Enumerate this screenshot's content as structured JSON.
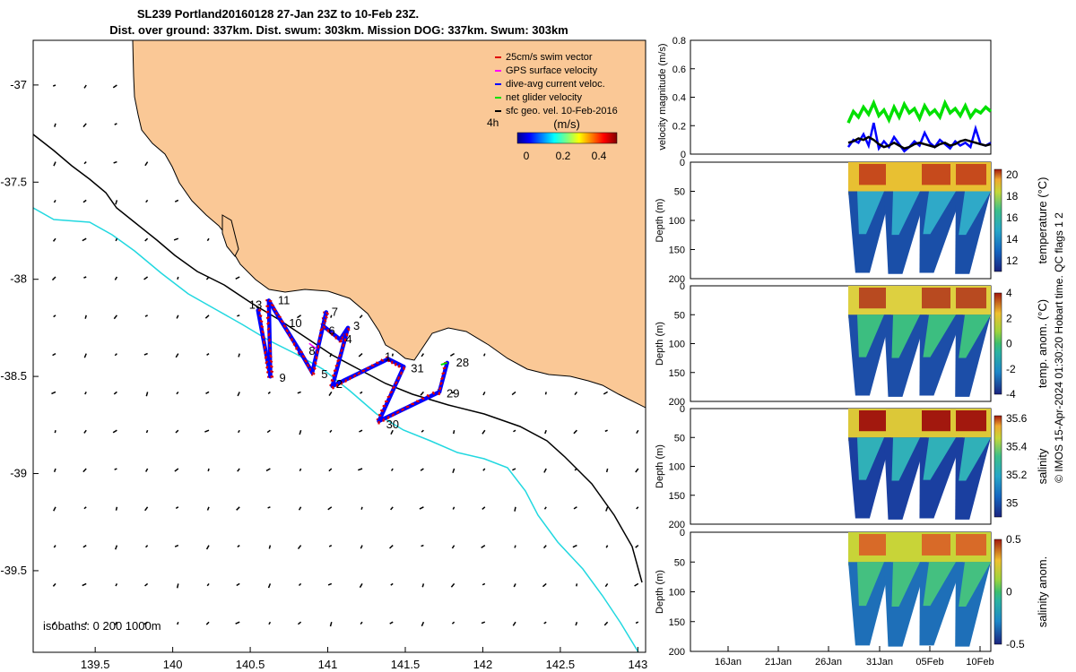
{
  "title_line1": "SL239 Portland20160128 27-Jan 23Z to 10-Feb 23Z.",
  "title_line2": "Dist. over ground: 337km. Dist. swum: 303km. Mission DOG: 337km. Swum: 303km",
  "side_note": "© IMOS 15-Apr-2024 01:30:20 Hobart time. QC flags 1  2",
  "colors": {
    "land": "#FAC896",
    "isobath_200": "#000000",
    "isobath_1000": "#22D8E0",
    "swim": "#E00000",
    "gps": "#FF00FF",
    "dive_avg": "#0000FF",
    "net": "#00E000",
    "geo": "#000000"
  },
  "chart_data": [
    {
      "type": "scatter",
      "name_panel": "map",
      "x_ticks": [
        "139.5",
        "140",
        "140.5",
        "141",
        "141.5",
        "142",
        "142.5",
        "143"
      ],
      "y_ticks": [
        "-37",
        "-37.5",
        "-38",
        "-38.5",
        "-39",
        "-39.5"
      ],
      "xlim": [
        139.1,
        143.05
      ],
      "ylim": [
        -39.92,
        -36.77
      ],
      "legend": [
        "25cm/s swim vector",
        "GPS surface velocity",
        "dive-avg current veloc.",
        "net glider velocity",
        "sfc geo. vel. 10-Feb-2016"
      ],
      "legend_placement": "top-right",
      "duration_label": "4h",
      "colorbar": {
        "label": "(m/s)",
        "ticks": [
          "0",
          "0.2",
          "0.4"
        ],
        "range": [
          0,
          0.5
        ]
      },
      "isobath_note": "isobaths: 0  200  1000m",
      "track_vertices": [
        {
          "lon": 140.55,
          "lat": -38.16,
          "label": "13"
        },
        {
          "lon": 140.63,
          "lat": -38.5,
          "label": "9"
        },
        {
          "lon": 140.62,
          "lat": -38.11,
          "label": "11"
        },
        {
          "lon": 140.68,
          "lat": -38.19,
          "label": "10"
        },
        {
          "lon": 140.82,
          "lat": -38.37,
          "label": "8"
        },
        {
          "lon": 140.9,
          "lat": -38.48,
          "label": "5"
        },
        {
          "lon": 140.99,
          "lat": -38.17,
          "label": "7"
        },
        {
          "lon": 140.97,
          "lat": -38.24,
          "label": "6"
        },
        {
          "lon": 141.08,
          "lat": -38.31,
          "label": "4"
        },
        {
          "lon": 141.13,
          "lat": -38.25,
          "label": "3"
        },
        {
          "lon": 141.03,
          "lat": -38.55,
          "label": "2"
        },
        {
          "lon": 141.39,
          "lat": -38.41,
          "label": "1"
        },
        {
          "lon": 141.49,
          "lat": -38.45,
          "label": "31"
        },
        {
          "lon": 141.33,
          "lat": -38.73,
          "label": "30"
        },
        {
          "lon": 141.72,
          "lat": -38.58,
          "label": "29"
        },
        {
          "lon": 141.77,
          "lat": -38.43,
          "label": "28"
        }
      ]
    },
    {
      "type": "line",
      "name_panel": "velocity",
      "ylabel": "velocity magnitude (m/s)",
      "ylim": [
        0,
        0.8
      ],
      "y_ticks": [
        "0",
        "0.2",
        "0.4",
        "0.6",
        "0.8"
      ],
      "x": [
        0,
        1,
        2,
        3,
        4,
        5,
        6,
        7,
        8,
        9,
        10,
        11,
        12,
        13,
        14,
        15,
        16,
        17,
        18,
        19,
        20,
        21,
        22,
        23,
        24,
        25,
        26,
        27,
        28
      ],
      "series": [
        {
          "key": "net",
          "values": [
            0.22,
            0.3,
            0.26,
            0.33,
            0.28,
            0.36,
            0.27,
            0.31,
            0.24,
            0.33,
            0.26,
            0.35,
            0.29,
            0.32,
            0.25,
            0.34,
            0.28,
            0.31,
            0.26,
            0.36,
            0.29,
            0.32,
            0.27,
            0.34,
            0.26,
            0.31,
            0.29,
            0.33,
            0.3
          ]
        },
        {
          "key": "dive",
          "values": [
            0.05,
            0.1,
            0.08,
            0.14,
            0.06,
            0.22,
            0.04,
            0.09,
            0.05,
            0.12,
            0.07,
            0.02,
            0.05,
            0.09,
            0.06,
            0.15,
            0.08,
            0.05,
            0.1,
            0.07,
            0.04,
            0.09,
            0.06,
            0.08,
            0.05,
            0.18,
            0.07,
            0.06,
            0.08
          ]
        },
        {
          "key": "geo",
          "values": [
            0.08,
            0.09,
            0.11,
            0.1,
            0.12,
            0.1,
            0.07,
            0.05,
            0.06,
            0.08,
            0.06,
            0.04,
            0.05,
            0.07,
            0.08,
            0.07,
            0.06,
            0.05,
            0.07,
            0.08,
            0.06,
            0.07,
            0.09,
            0.1,
            0.09,
            0.08,
            0.07,
            0.06,
            0.07
          ]
        }
      ]
    },
    {
      "type": "heatmap",
      "panels": [
        {
          "key": "temp",
          "cbar_label": "temperature (°C)",
          "cbar_ticks": [
            "12",
            "14",
            "16",
            "18",
            "20"
          ],
          "crange": [
            11,
            20.5
          ]
        },
        {
          "key": "tanom",
          "cbar_label": "temp. anom. (°C)",
          "cbar_ticks": [
            "-4",
            "-2",
            "0",
            "2",
            "4"
          ],
          "crange": [
            -4,
            4
          ]
        },
        {
          "key": "sal",
          "cbar_label": "salinity",
          "cbar_ticks": [
            "35",
            "35.2",
            "35.4",
            "35.6"
          ],
          "crange": [
            34.9,
            35.62
          ]
        },
        {
          "key": "sanom",
          "cbar_label": "salinity anom.",
          "cbar_ticks": [
            "-0.5",
            "0",
            "0.5"
          ],
          "crange": [
            -0.5,
            0.5
          ]
        }
      ],
      "ylabel": "Depth (m)",
      "depth_ticks": [
        "0",
        "50",
        "100",
        "150",
        "200"
      ],
      "ylim": [
        200,
        0
      ],
      "time_ticks": [
        "16Jan",
        "21Jan",
        "26Jan",
        "31Jan",
        "05Feb",
        "10Feb"
      ],
      "profile_deep_ranges": [
        {
          "center": 0.1,
          "bottom_m": 190
        },
        {
          "center": 0.33,
          "bottom_m": 192
        },
        {
          "center": 0.55,
          "bottom_m": 190
        },
        {
          "center": 0.8,
          "bottom_m": 192
        }
      ]
    }
  ]
}
